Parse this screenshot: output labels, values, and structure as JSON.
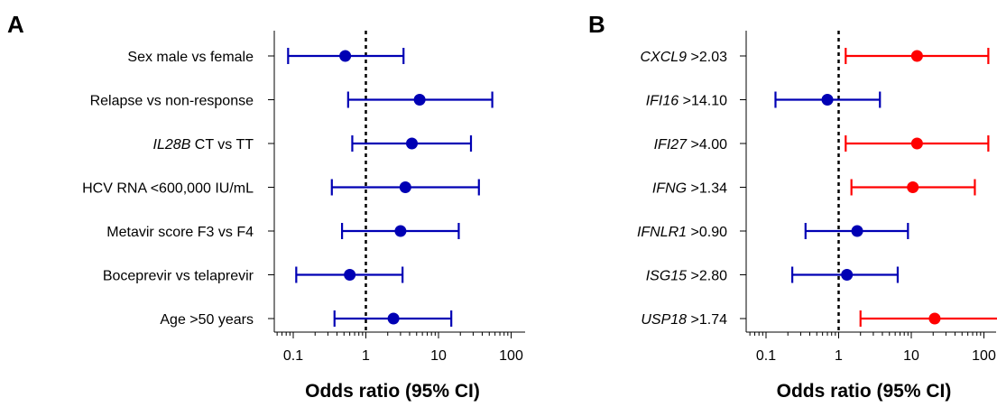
{
  "chart_data": [
    {
      "type": "forest",
      "panel_label": "A",
      "xlabel": "Odds ratio (95% CI)",
      "x_scale": "log",
      "xlim": [
        0.05,
        200
      ],
      "x_ticks": [
        0.1,
        1,
        10,
        100
      ],
      "x_tick_labels": [
        "0.1",
        "1",
        "10",
        "100"
      ],
      "reference_line": 1,
      "marker_color": "#0000b4",
      "rows": [
        {
          "label_italic": "",
          "label_rest": "Sex male vs female",
          "or": 0.52,
          "lo": 0.085,
          "hi": 3.3
        },
        {
          "label_italic": "",
          "label_rest": "Relapse vs non-response",
          "or": 5.5,
          "lo": 0.57,
          "hi": 55
        },
        {
          "label_italic": "IL28B",
          "label_rest": " CT vs TT",
          "or": 4.3,
          "lo": 0.65,
          "hi": 28
        },
        {
          "label_italic": "",
          "label_rest": "HCV RNA <600,000 IU/mL",
          "or": 3.5,
          "lo": 0.34,
          "hi": 36
        },
        {
          "label_italic": "",
          "label_rest": "Metavir score F3 vs F4",
          "or": 3.0,
          "lo": 0.47,
          "hi": 19
        },
        {
          "label_italic": "",
          "label_rest": "Boceprevir vs telaprevir",
          "or": 0.6,
          "lo": 0.11,
          "hi": 3.2
        },
        {
          "label_italic": "",
          "label_rest": "Age >50 years",
          "or": 2.4,
          "lo": 0.37,
          "hi": 15
        }
      ]
    },
    {
      "type": "forest",
      "panel_label": "B",
      "xlabel": "Odds ratio (95% CI)",
      "x_scale": "log",
      "xlim": [
        0.05,
        200
      ],
      "x_ticks": [
        0.1,
        1,
        10,
        100
      ],
      "x_tick_labels": [
        "0.1",
        "1",
        "10",
        "100"
      ],
      "reference_line": 1,
      "rows": [
        {
          "label_italic": "CXCL9",
          "label_rest": " >2.03",
          "or": 12,
          "lo": 1.25,
          "hi": 115,
          "color": "#ff0000"
        },
        {
          "label_italic": "IFI16",
          "label_rest": " >14.10",
          "or": 0.7,
          "lo": 0.135,
          "hi": 3.7,
          "color": "#0000b4"
        },
        {
          "label_italic": "IFI27",
          "label_rest": " >4.00",
          "or": 12,
          "lo": 1.25,
          "hi": 115,
          "color": "#ff0000"
        },
        {
          "label_italic": "IFNG",
          "label_rest": " >1.34",
          "or": 10.5,
          "lo": 1.5,
          "hi": 75,
          "color": "#ff0000"
        },
        {
          "label_italic": "IFNLR1",
          "label_rest": " >0.90",
          "or": 1.8,
          "lo": 0.35,
          "hi": 9.0,
          "color": "#0000b4"
        },
        {
          "label_italic": "ISG15",
          "label_rest": " >2.80",
          "or": 1.3,
          "lo": 0.23,
          "hi": 6.5,
          "color": "#0000b4"
        },
        {
          "label_italic": "USP18",
          "label_rest": " >1.74",
          "or": 21,
          "lo": 2.0,
          "hi": 250,
          "color": "#ff0000"
        }
      ]
    }
  ]
}
